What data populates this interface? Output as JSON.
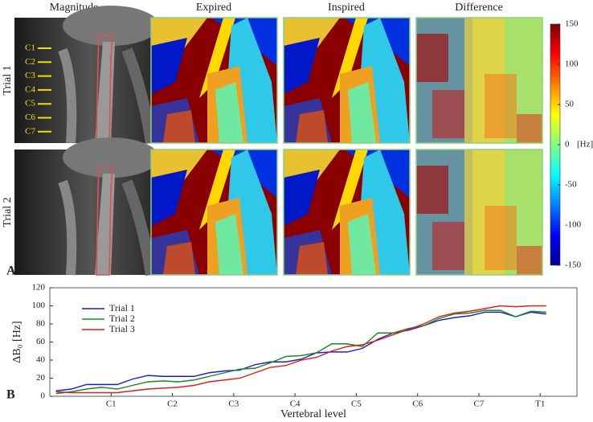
{
  "panel_a": {
    "label": "A",
    "columns": [
      "Magnitude",
      "Expired",
      "Inspired",
      "Difference"
    ],
    "rows": [
      "Trial 1",
      "Trial 2"
    ],
    "vertebrae": [
      "C1",
      "C2",
      "C3",
      "C4",
      "C5",
      "C6",
      "C7"
    ],
    "colorbar": {
      "lim": [
        -150,
        150
      ],
      "ticks": [
        150,
        100,
        50,
        0,
        -50,
        -100,
        -150
      ],
      "unit": "[Hz]"
    }
  },
  "chart_data": {
    "type": "line",
    "label": "B",
    "xlabel": "Vertebral level",
    "ylabel": "ΔB₀ [Hz]",
    "xlim": [
      0,
      8.6
    ],
    "xticks": [
      {
        "value": 1,
        "label": "C1"
      },
      {
        "value": 2,
        "label": "C2"
      },
      {
        "value": 3,
        "label": "C3"
      },
      {
        "value": 4,
        "label": "C4"
      },
      {
        "value": 5,
        "label": "C5"
      },
      {
        "value": 6,
        "label": "C6"
      },
      {
        "value": 7,
        "label": "C7"
      },
      {
        "value": 8,
        "label": "T1"
      }
    ],
    "ylim": [
      0,
      120
    ],
    "yticks": [
      0,
      20,
      40,
      60,
      80,
      100,
      120
    ],
    "legend": "upper-left",
    "x": [
      0.1,
      0.35,
      0.6,
      0.85,
      1.1,
      1.35,
      1.6,
      1.85,
      2.1,
      2.35,
      2.6,
      2.85,
      3.1,
      3.35,
      3.6,
      3.85,
      4.1,
      4.35,
      4.6,
      4.85,
      5.1,
      5.35,
      5.6,
      5.85,
      6.1,
      6.35,
      6.6,
      6.85,
      7.1,
      7.35,
      7.6,
      7.85,
      8.1
    ],
    "series": [
      {
        "name": "Trial 1",
        "color": "#1c1cd4",
        "values": [
          6,
          8,
          13,
          13,
          13,
          19,
          23,
          22,
          22,
          22,
          26,
          28,
          29,
          35,
          38,
          38,
          41,
          48,
          49,
          49,
          53,
          63,
          70,
          73,
          78,
          84,
          87,
          89,
          93,
          93,
          88,
          93,
          91
        ]
      },
      {
        "name": "Trial 2",
        "color": "#1a8a1a",
        "values": [
          3,
          5,
          8,
          10,
          8,
          12,
          16,
          17,
          16,
          18,
          22,
          26,
          30,
          31,
          37,
          44,
          45,
          48,
          58,
          58,
          55,
          70,
          70,
          75,
          78,
          86,
          91,
          92,
          95,
          95,
          88,
          94,
          93
        ]
      },
      {
        "name": "Trial 3",
        "color": "#e01c1c",
        "values": [
          5,
          4,
          4,
          4,
          4,
          6,
          8,
          9,
          10,
          12,
          16,
          18,
          20,
          26,
          32,
          34,
          40,
          43,
          50,
          55,
          57,
          62,
          68,
          74,
          80,
          88,
          92,
          94,
          97,
          100,
          99,
          100,
          100
        ]
      }
    ]
  }
}
